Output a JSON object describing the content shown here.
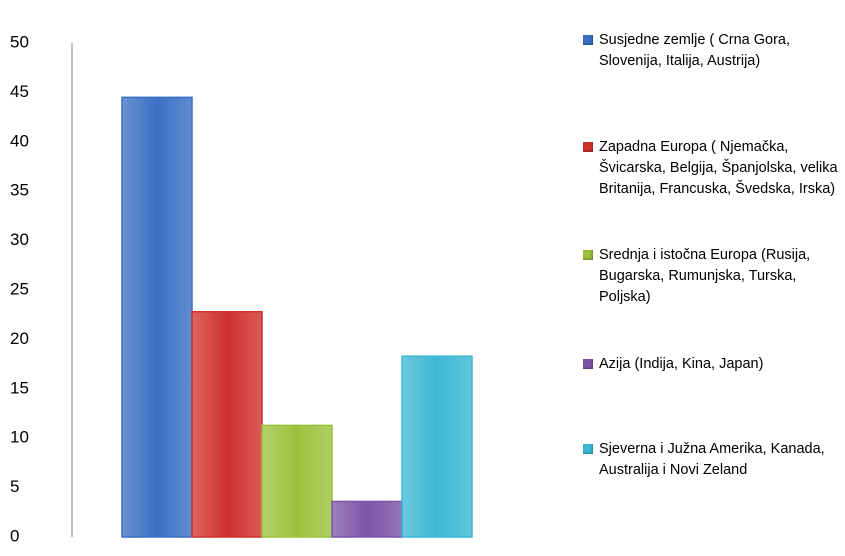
{
  "chart_data": {
    "type": "bar",
    "legend": "right",
    "grid": false,
    "categories": [
      null
    ],
    "series": [
      {
        "name": "Susjedne zemlje ( Crna Gora, Slovenija, Italija, Austrija)",
        "color": "#3a6fc4",
        "values": [
          44.5
        ]
      },
      {
        "name": "Zapadna Europa ( Njemačka, Švicarska, Belgija, Španjolska, velika Britanija, Francuska, Švedska, Irska)",
        "color": "#d0312d",
        "values": [
          22.8
        ]
      },
      {
        "name": "Srednja i istočna Europa (Rusija, Bugarska, Rumunjska, Turska, Poljska)",
        "color": "#9cc23c",
        "values": [
          11.3
        ]
      },
      {
        "name": "Azija (Indija, Kina, Japan)",
        "color": "#7d55a8",
        "values": [
          3.6
        ]
      },
      {
        "name": "Sjeverna i Južna Amerika, Kanada,  Australija i Novi Zeland",
        "color": "#3cb8d4",
        "values": [
          18.3
        ]
      }
    ],
    "ylim": [
      0,
      50
    ],
    "yticks": [
      0,
      5,
      10,
      15,
      20,
      25,
      30,
      35,
      40,
      45,
      50
    ]
  }
}
